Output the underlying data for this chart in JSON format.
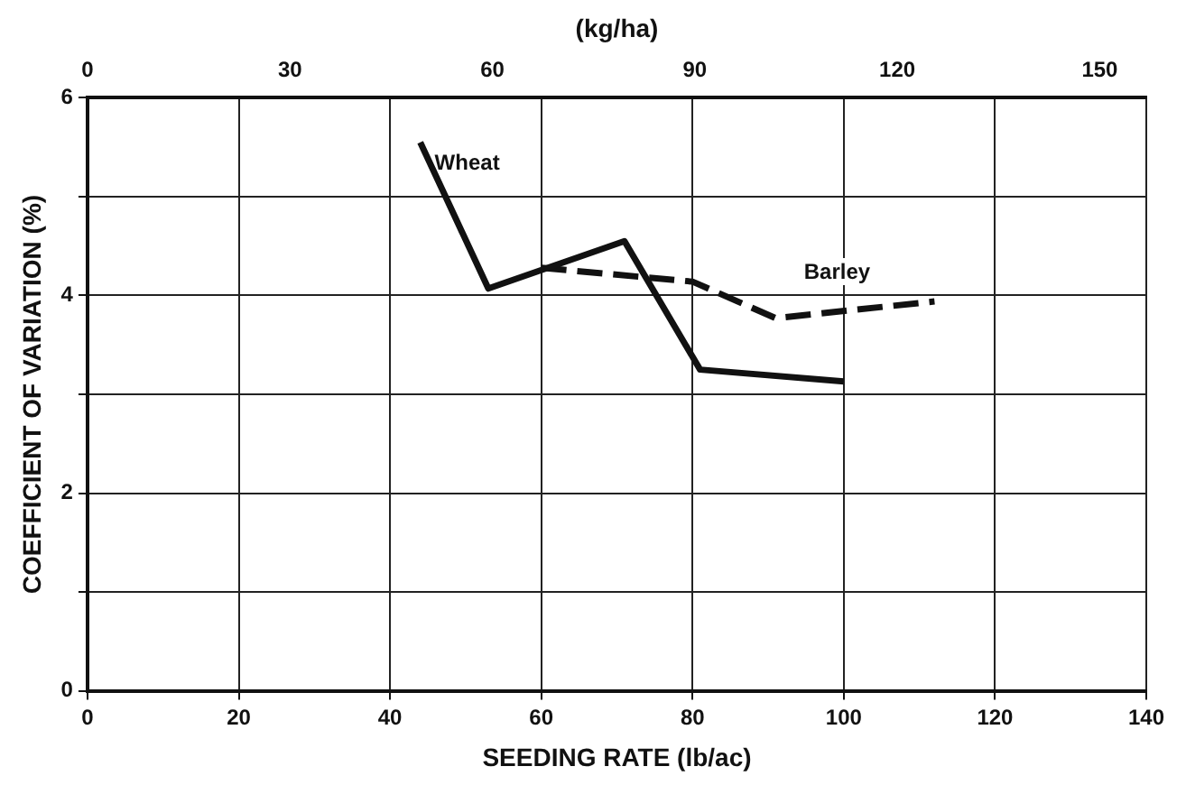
{
  "chart_data": {
    "type": "line",
    "xlabel": "SEEDING RATE (lb/ac)",
    "ylabel": "COEFFICIENT OF VARIATION (%)",
    "x2label": "(kg/ha)",
    "series": [
      {
        "name": "Wheat",
        "color": "#111111",
        "line_style": "solid",
        "x": [
          44,
          53,
          71,
          81,
          100
        ],
        "values": [
          5.55,
          4.07,
          4.55,
          3.25,
          3.13
        ]
      },
      {
        "name": "Barley",
        "color": "#111111",
        "line_style": "dashed",
        "x": [
          60,
          80,
          91,
          112
        ],
        "values": [
          4.28,
          4.14,
          3.77,
          3.94
        ]
      }
    ],
    "xlim": [
      0,
      140
    ],
    "xticks": [
      0,
      20,
      40,
      60,
      80,
      100,
      120,
      140
    ],
    "x2lim": [
      0,
      156.9
    ],
    "x2ticks": [
      0,
      30,
      60,
      90,
      120,
      150
    ],
    "ylim": [
      0,
      6
    ],
    "yticks": [
      0,
      {
        "value": 1,
        "label": null
      },
      2,
      {
        "value": 3,
        "label": null
      },
      4,
      {
        "value": 5,
        "label": null
      },
      6
    ],
    "grid": true,
    "legend": false,
    "marker": "none"
  }
}
